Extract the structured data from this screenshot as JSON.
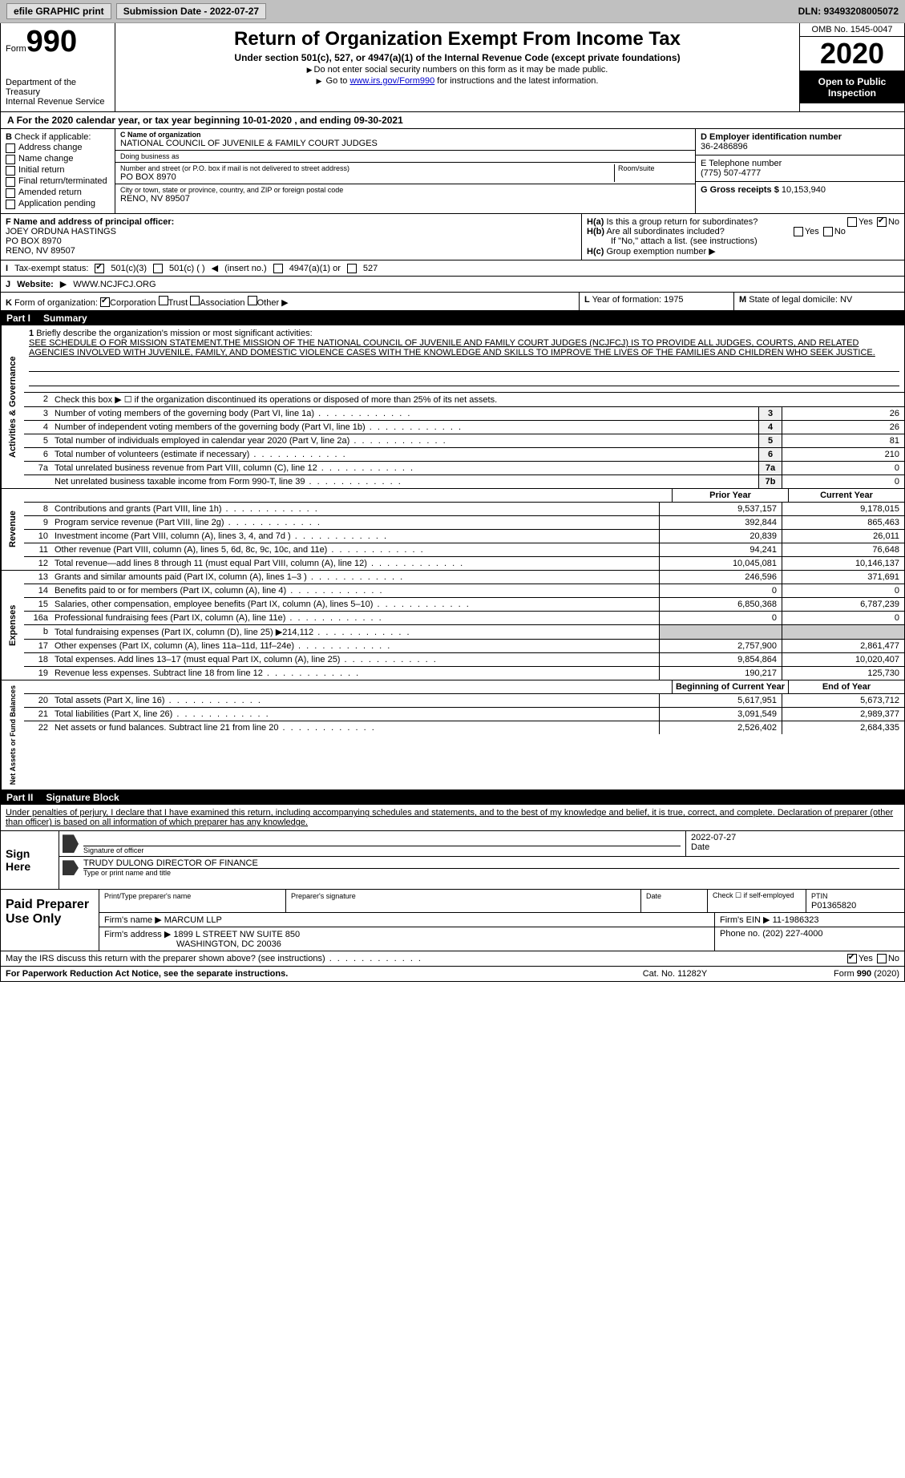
{
  "topbar": {
    "efile": "efile GRAPHIC print",
    "submission_label": "Submission Date - 2022-07-27",
    "dln": "DLN: 93493208005072"
  },
  "header": {
    "form_word": "Form",
    "form_number": "990",
    "dept1": "Department of the Treasury",
    "dept2": "Internal Revenue Service",
    "title": "Return of Organization Exempt From Income Tax",
    "subtitle": "Under section 501(c), 527, or 4947(a)(1) of the Internal Revenue Code (except private foundations)",
    "note1": "Do not enter social security numbers on this form as it may be made public.",
    "note2_pre": "Go to ",
    "note2_link": "www.irs.gov/Form990",
    "note2_post": " for instructions and the latest information.",
    "omb": "OMB No. 1545-0047",
    "year": "2020",
    "open": "Open to Public Inspection"
  },
  "line_a": "For the 2020 calendar year, or tax year beginning 10-01-2020   , and ending 09-30-2021",
  "box_b": {
    "label": "Check if applicable:",
    "items": [
      "Address change",
      "Name change",
      "Initial return",
      "Final return/terminated",
      "Amended return",
      "Application pending"
    ]
  },
  "box_c": {
    "name_label": "C Name of organization",
    "name": "NATIONAL COUNCIL OF JUVENILE & FAMILY COURT JUDGES",
    "dba_label": "Doing business as",
    "street_label": "Number and street (or P.O. box if mail is not delivered to street address)",
    "room_label": "Room/suite",
    "street": "PO BOX 8970",
    "city_label": "City or town, state or province, country, and ZIP or foreign postal code",
    "city": "RENO, NV  89507"
  },
  "box_d": {
    "label": "D Employer identification number",
    "value": "36-2486896"
  },
  "box_e": {
    "label": "E Telephone number",
    "value": "(775) 507-4777"
  },
  "box_g": {
    "label": "G Gross receipts $",
    "value": "10,153,940"
  },
  "box_f": {
    "label": "F  Name and address of principal officer:",
    "name": "JOEY ORDUNA HASTINGS",
    "l2": "PO BOX 8970",
    "l3": "RENO, NV  89507"
  },
  "box_h": {
    "ha": "Is this a group return for subordinates?",
    "hb": "Are all subordinates included?",
    "hnote": "If \"No,\" attach a list. (see instructions)",
    "hc": "Group exemption number"
  },
  "row_i": {
    "label": "Tax-exempt status:",
    "o1": "501(c)(3)",
    "o2": "501(c) (    )",
    "o2b": "(insert no.)",
    "o3": "4947(a)(1) or",
    "o4": "527"
  },
  "row_j": {
    "label": "Website:",
    "value": "WWW.NCJFCJ.ORG"
  },
  "row_k": {
    "label": "Form of organization:",
    "o1": "Corporation",
    "o2": "Trust",
    "o3": "Association",
    "o4": "Other"
  },
  "row_l": {
    "label": "Year of formation:",
    "value": "1975"
  },
  "row_m": {
    "label": "State of legal domicile:",
    "value": "NV"
  },
  "parts": {
    "p1": {
      "no": "Part I",
      "title": "Summary"
    },
    "p2": {
      "no": "Part II",
      "title": "Signature Block"
    }
  },
  "vtabs": {
    "gov": "Activities & Governance",
    "rev": "Revenue",
    "exp": "Expenses",
    "net": "Net Assets or Fund Balances"
  },
  "mission": {
    "label": "Briefly describe the organization's mission or most significant activities:",
    "text": "SEE SCHEDULE O FOR MISSION STATEMENT.THE MISSION OF THE NATIONAL COUNCIL OF JUVENILE AND FAMILY COURT JUDGES (NCJFCJ) IS TO PROVIDE ALL JUDGES, COURTS, AND RELATED AGENCIES INVOLVED WITH JUVENILE, FAMILY, AND DOMESTIC VIOLENCE CASES WITH THE KNOWLEDGE AND SKILLS TO IMPROVE THE LIVES OF THE FAMILIES AND CHILDREN WHO SEEK JUSTICE."
  },
  "gov_lines": {
    "l2": "Check this box ▶ ☐ if the organization discontinued its operations or disposed of more than 25% of its net assets.",
    "l3": {
      "desc": "Number of voting members of the governing body (Part VI, line 1a)",
      "box": "3",
      "val": "26"
    },
    "l4": {
      "desc": "Number of independent voting members of the governing body (Part VI, line 1b)",
      "box": "4",
      "val": "26"
    },
    "l5": {
      "desc": "Total number of individuals employed in calendar year 2020 (Part V, line 2a)",
      "box": "5",
      "val": "81"
    },
    "l6": {
      "desc": "Total number of volunteers (estimate if necessary)",
      "box": "6",
      "val": "210"
    },
    "l7a": {
      "desc": "Total unrelated business revenue from Part VIII, column (C), line 12",
      "box": "7a",
      "val": "0"
    },
    "l7b": {
      "desc": "Net unrelated business taxable income from Form 990-T, line 39",
      "box": "7b",
      "val": "0"
    }
  },
  "year_cols": {
    "prior": "Prior Year",
    "current": "Current Year"
  },
  "rev_lines": [
    {
      "n": "8",
      "desc": "Contributions and grants (Part VIII, line 1h)",
      "p": "9,537,157",
      "c": "9,178,015"
    },
    {
      "n": "9",
      "desc": "Program service revenue (Part VIII, line 2g)",
      "p": "392,844",
      "c": "865,463"
    },
    {
      "n": "10",
      "desc": "Investment income (Part VIII, column (A), lines 3, 4, and 7d )",
      "p": "20,839",
      "c": "26,011"
    },
    {
      "n": "11",
      "desc": "Other revenue (Part VIII, column (A), lines 5, 6d, 8c, 9c, 10c, and 11e)",
      "p": "94,241",
      "c": "76,648"
    },
    {
      "n": "12",
      "desc": "Total revenue—add lines 8 through 11 (must equal Part VIII, column (A), line 12)",
      "p": "10,045,081",
      "c": "10,146,137"
    }
  ],
  "exp_lines": [
    {
      "n": "13",
      "desc": "Grants and similar amounts paid (Part IX, column (A), lines 1–3 )",
      "p": "246,596",
      "c": "371,691"
    },
    {
      "n": "14",
      "desc": "Benefits paid to or for members (Part IX, column (A), line 4)",
      "p": "0",
      "c": "0"
    },
    {
      "n": "15",
      "desc": "Salaries, other compensation, employee benefits (Part IX, column (A), lines 5–10)",
      "p": "6,850,368",
      "c": "6,787,239"
    },
    {
      "n": "16a",
      "desc": "Professional fundraising fees (Part IX, column (A), line 11e)",
      "p": "0",
      "c": "0"
    },
    {
      "n": "b",
      "desc": "Total fundraising expenses (Part IX, column (D), line 25) ▶214,112",
      "p": "",
      "c": ""
    },
    {
      "n": "17",
      "desc": "Other expenses (Part IX, column (A), lines 11a–11d, 11f–24e)",
      "p": "2,757,900",
      "c": "2,861,477"
    },
    {
      "n": "18",
      "desc": "Total expenses. Add lines 13–17 (must equal Part IX, column (A), line 25)",
      "p": "9,854,864",
      "c": "10,020,407"
    },
    {
      "n": "19",
      "desc": "Revenue less expenses. Subtract line 18 from line 12",
      "p": "190,217",
      "c": "125,730"
    }
  ],
  "net_hdr": {
    "b": "Beginning of Current Year",
    "e": "End of Year"
  },
  "net_lines": [
    {
      "n": "20",
      "desc": "Total assets (Part X, line 16)",
      "p": "5,617,951",
      "c": "5,673,712"
    },
    {
      "n": "21",
      "desc": "Total liabilities (Part X, line 26)",
      "p": "3,091,549",
      "c": "2,989,377"
    },
    {
      "n": "22",
      "desc": "Net assets or fund balances. Subtract line 21 from line 20",
      "p": "2,526,402",
      "c": "2,684,335"
    }
  ],
  "sig_intro": "Under penalties of perjury, I declare that I have examined this return, including accompanying schedules and statements, and to the best of my knowledge and belief, it is true, correct, and complete. Declaration of preparer (other than officer) is based on all information of which preparer has any knowledge.",
  "sign": {
    "here": "Sign Here",
    "sig_lbl": "Signature of officer",
    "date_lbl": "Date",
    "date_val": "2022-07-27",
    "name_val": "TRUDY DULONG  DIRECTOR OF FINANCE",
    "name_lbl": "Type or print name and title"
  },
  "prep": {
    "label": "Paid Preparer Use Only",
    "h_print": "Print/Type preparer's name",
    "h_sig": "Preparer's signature",
    "h_date": "Date",
    "h_check": "Check ☐ if self-employed",
    "h_ptin": "PTIN",
    "ptin": "P01365820",
    "firm_name_lbl": "Firm's name    ▶",
    "firm_name": "MARCUM LLP",
    "firm_ein_lbl": "Firm's EIN ▶",
    "firm_ein": "11-1986323",
    "firm_addr_lbl": "Firm's address ▶",
    "firm_addr1": "1899 L STREET NW SUITE 850",
    "firm_addr2": "WASHINGTON, DC  20036",
    "phone_lbl": "Phone no.",
    "phone": "(202) 227-4000"
  },
  "discuss": "May the IRS discuss this return with the preparer shown above? (see instructions)",
  "footer": {
    "l": "For Paperwork Reduction Act Notice, see the separate instructions.",
    "c": "Cat. No. 11282Y",
    "r_pre": "Form ",
    "r_form": "990",
    "r_post": " (2020)"
  },
  "yn": {
    "yes": "Yes",
    "no": "No"
  }
}
